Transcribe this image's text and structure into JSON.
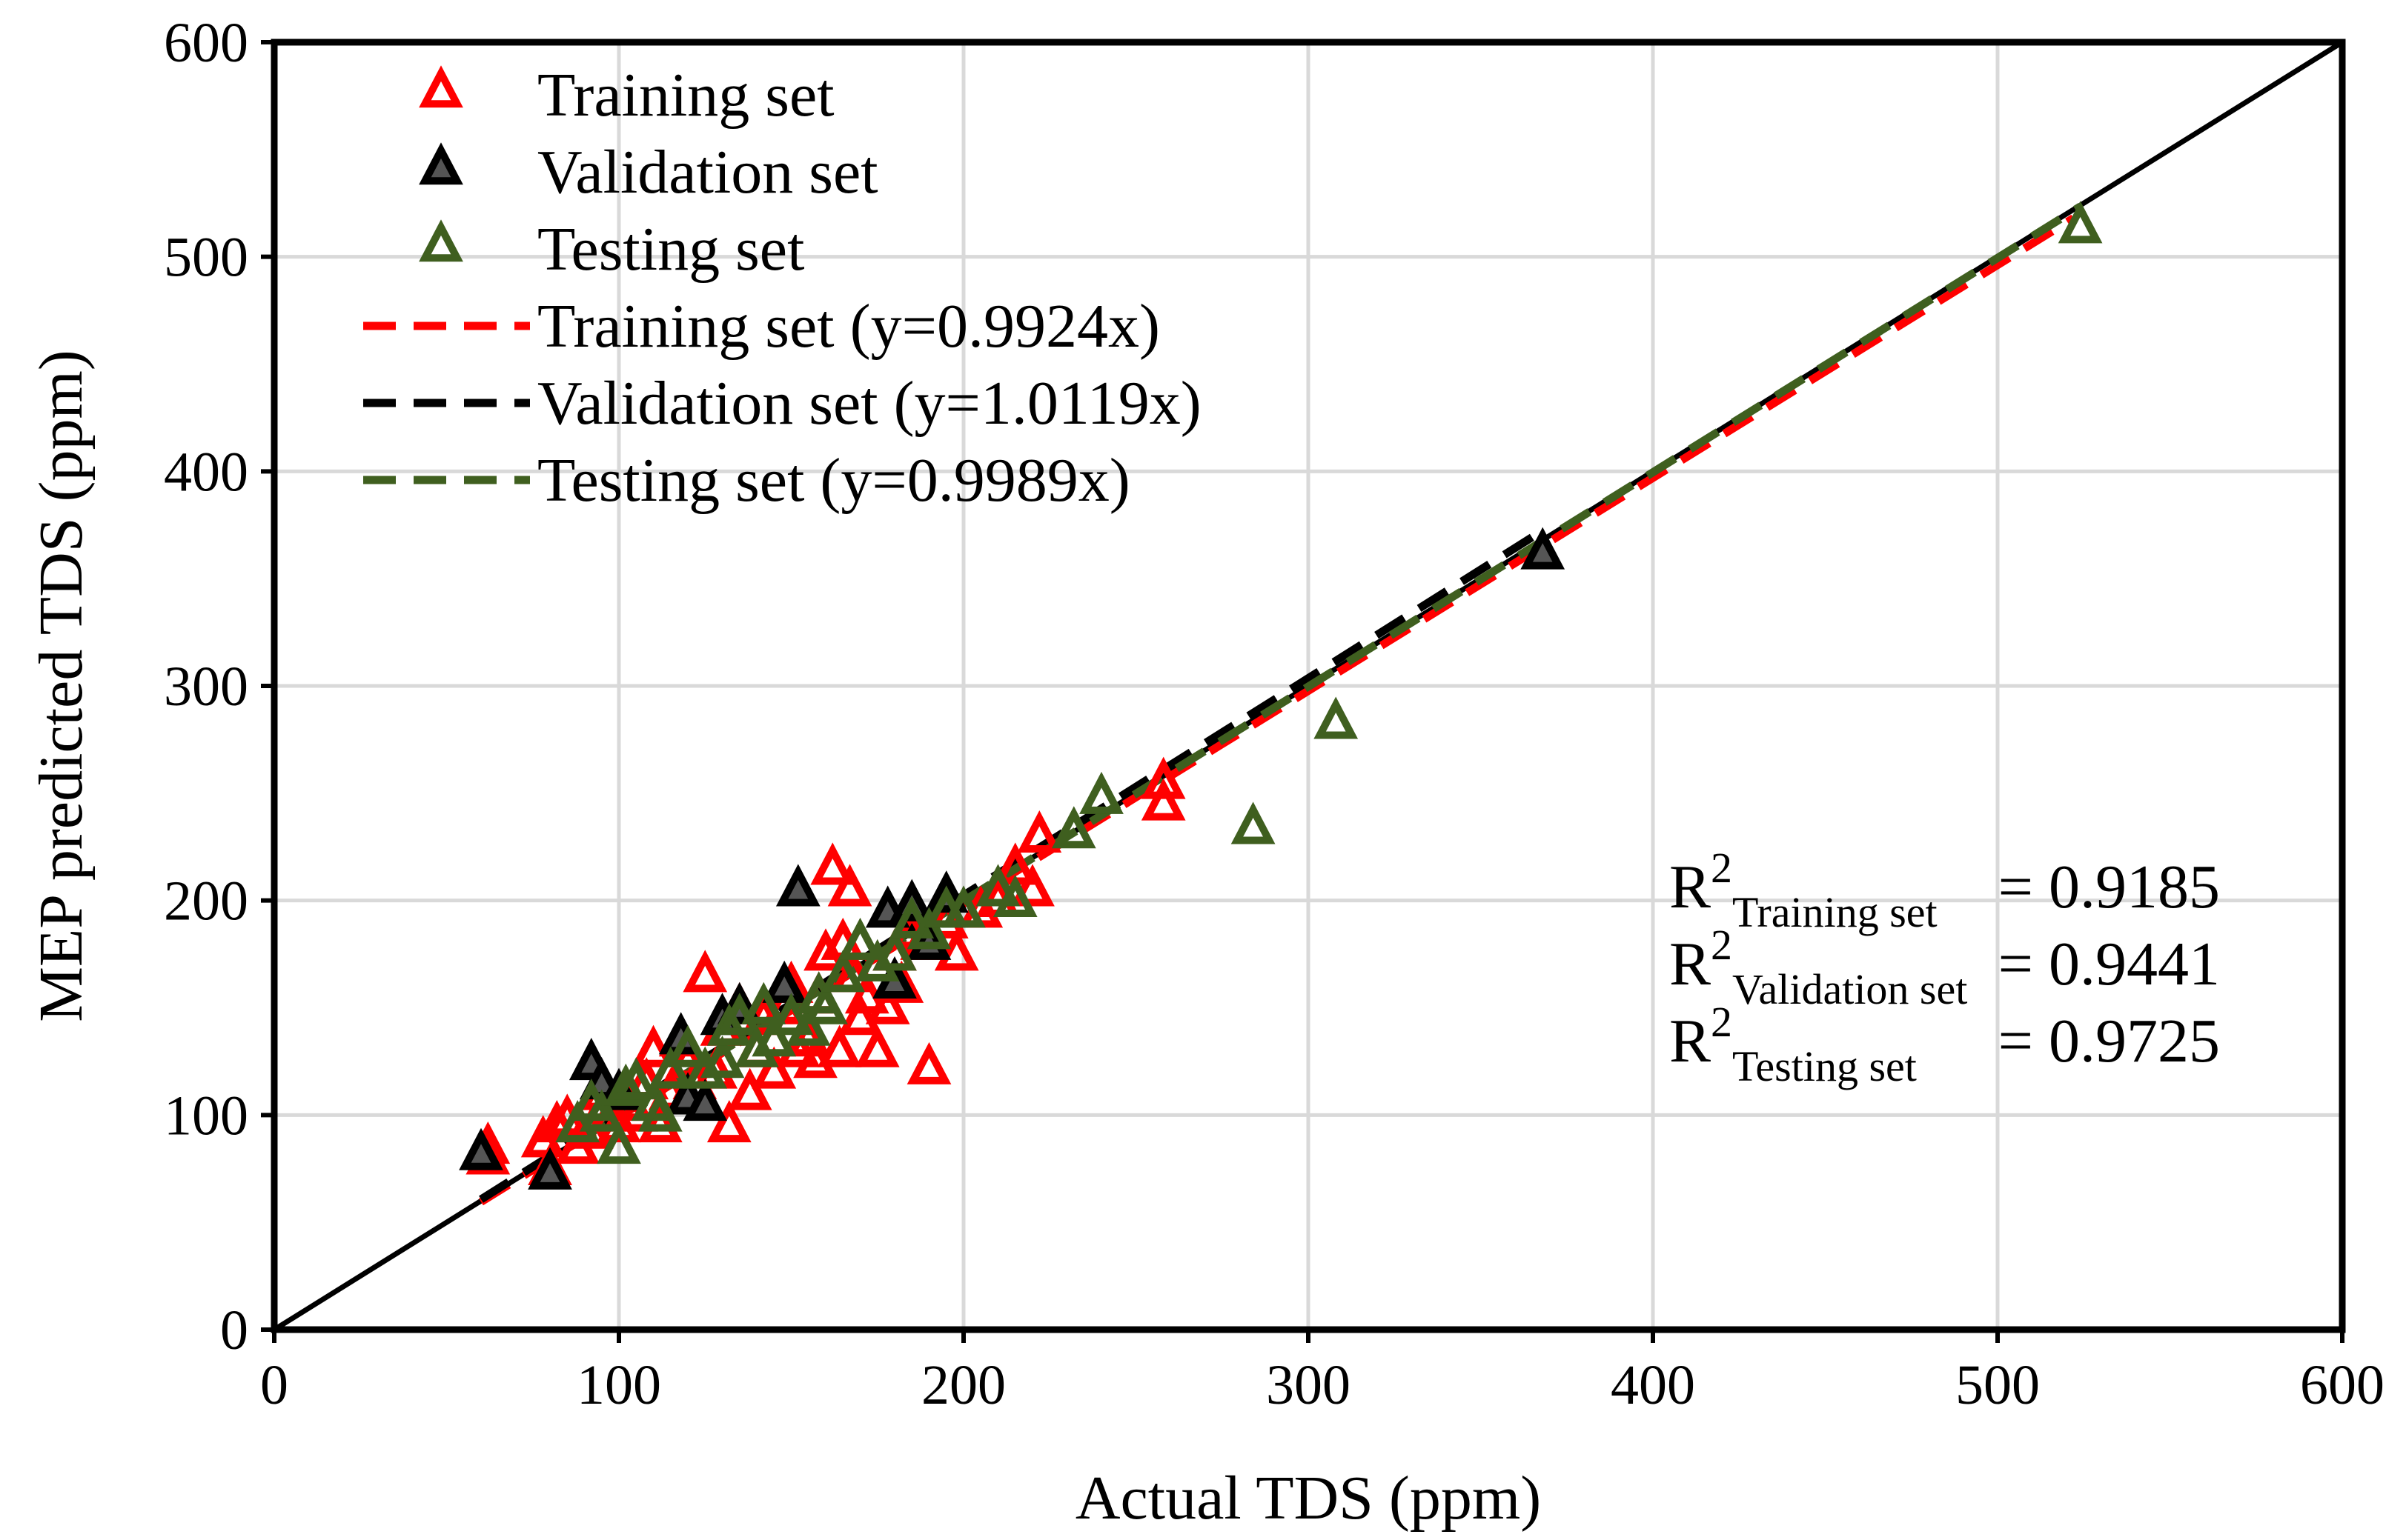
{
  "chart_data": {
    "type": "scatter",
    "title": "",
    "xlabel": "Actual TDS (ppm)",
    "ylabel": "MEP predicted TDS (ppm)",
    "xlim": [
      0,
      600
    ],
    "ylim": [
      0,
      600
    ],
    "xticks": [
      0,
      100,
      200,
      300,
      400,
      500,
      600
    ],
    "yticks": [
      0,
      100,
      200,
      300,
      400,
      500,
      600
    ],
    "grid": true,
    "legend_position": "top-left",
    "colors": {
      "training": "#ff0000",
      "validation": "#000000",
      "testing": "#3f5f1f",
      "identity": "#000000",
      "grid": "#d9d9d9"
    },
    "series": [
      {
        "name": "Training set",
        "key": "training",
        "marker": "open-triangle",
        "points": [
          [
            62,
            85
          ],
          [
            62,
            80
          ],
          [
            78,
            88
          ],
          [
            80,
            75
          ],
          [
            82,
            95
          ],
          [
            85,
            98
          ],
          [
            88,
            85
          ],
          [
            92,
            92
          ],
          [
            95,
            110
          ],
          [
            98,
            100
          ],
          [
            100,
            95
          ],
          [
            102,
            105
          ],
          [
            105,
            100
          ],
          [
            108,
            115
          ],
          [
            110,
            130
          ],
          [
            112,
            95
          ],
          [
            115,
            110
          ],
          [
            118,
            135
          ],
          [
            120,
            125
          ],
          [
            122,
            115
          ],
          [
            125,
            165
          ],
          [
            128,
            120
          ],
          [
            130,
            140
          ],
          [
            132,
            95
          ],
          [
            135,
            150
          ],
          [
            138,
            110
          ],
          [
            140,
            130
          ],
          [
            142,
            145
          ],
          [
            145,
            120
          ],
          [
            148,
            150
          ],
          [
            150,
            160
          ],
          [
            152,
            130
          ],
          [
            155,
            135
          ],
          [
            157,
            125
          ],
          [
            158,
            155
          ],
          [
            160,
            175
          ],
          [
            162,
            215
          ],
          [
            164,
            130
          ],
          [
            165,
            180
          ],
          [
            167,
            205
          ],
          [
            168,
            165
          ],
          [
            170,
            145
          ],
          [
            172,
            155
          ],
          [
            175,
            130
          ],
          [
            178,
            150
          ],
          [
            180,
            175
          ],
          [
            182,
            160
          ],
          [
            185,
            185
          ],
          [
            188,
            180
          ],
          [
            190,
            122
          ],
          [
            195,
            190
          ],
          [
            198,
            175
          ],
          [
            205,
            195
          ],
          [
            210,
            200
          ],
          [
            215,
            215
          ],
          [
            220,
            205
          ],
          [
            222,
            230
          ],
          [
            258,
            245
          ],
          [
            258,
            255
          ]
        ]
      },
      {
        "name": "Validation set",
        "key": "validation",
        "marker": "filled-triangle",
        "points": [
          [
            60,
            82
          ],
          [
            80,
            73
          ],
          [
            92,
            124
          ],
          [
            95,
            115
          ],
          [
            100,
            110
          ],
          [
            118,
            136
          ],
          [
            120,
            108
          ],
          [
            125,
            105
          ],
          [
            130,
            145
          ],
          [
            135,
            150
          ],
          [
            148,
            160
          ],
          [
            152,
            205
          ],
          [
            178,
            195
          ],
          [
            180,
            162
          ],
          [
            185,
            198
          ],
          [
            190,
            180
          ],
          [
            195,
            202
          ],
          [
            368,
            362
          ]
        ]
      },
      {
        "name": "Testing set",
        "key": "testing",
        "marker": "open-triangle",
        "points": [
          [
            88,
            95
          ],
          [
            92,
            105
          ],
          [
            95,
            100
          ],
          [
            100,
            85
          ],
          [
            102,
            112
          ],
          [
            105,
            115
          ],
          [
            110,
            105
          ],
          [
            112,
            100
          ],
          [
            115,
            120
          ],
          [
            120,
            130
          ],
          [
            125,
            120
          ],
          [
            130,
            125
          ],
          [
            132,
            140
          ],
          [
            135,
            145
          ],
          [
            140,
            130
          ],
          [
            142,
            150
          ],
          [
            145,
            135
          ],
          [
            150,
            145
          ],
          [
            155,
            140
          ],
          [
            158,
            155
          ],
          [
            160,
            150
          ],
          [
            165,
            165
          ],
          [
            170,
            180
          ],
          [
            175,
            170
          ],
          [
            180,
            175
          ],
          [
            185,
            190
          ],
          [
            190,
            185
          ],
          [
            195,
            195
          ],
          [
            200,
            195
          ],
          [
            210,
            205
          ],
          [
            215,
            200
          ],
          [
            232,
            232
          ],
          [
            240,
            248
          ],
          [
            284,
            234
          ],
          [
            308,
            283
          ],
          [
            524,
            514
          ]
        ]
      }
    ],
    "fits": [
      {
        "name": "Training set (y=0.9924x)",
        "key": "training",
        "slope": 0.9924,
        "x_range": [
          60,
          522
        ]
      },
      {
        "name": "Validation set (y=1.0119x)",
        "key": "validation",
        "slope": 1.0119,
        "x_range": [
          60,
          368
        ]
      },
      {
        "name": "Testing set (y=0.9989x)",
        "key": "testing",
        "slope": 0.9989,
        "x_range": [
          88,
          524
        ]
      }
    ],
    "identity_line": {
      "slope": 1,
      "x_range": [
        0,
        600
      ]
    },
    "stats": [
      {
        "label": "R",
        "sup": "2",
        "sub": "Training set",
        "value": "= 0.9185"
      },
      {
        "label": "R",
        "sup": "2",
        "sub": "Validation set",
        "value": "= 0.9441"
      },
      {
        "label": "R",
        "sup": "2",
        "sub": "Testing set",
        "value": "= 0.9725"
      }
    ]
  }
}
